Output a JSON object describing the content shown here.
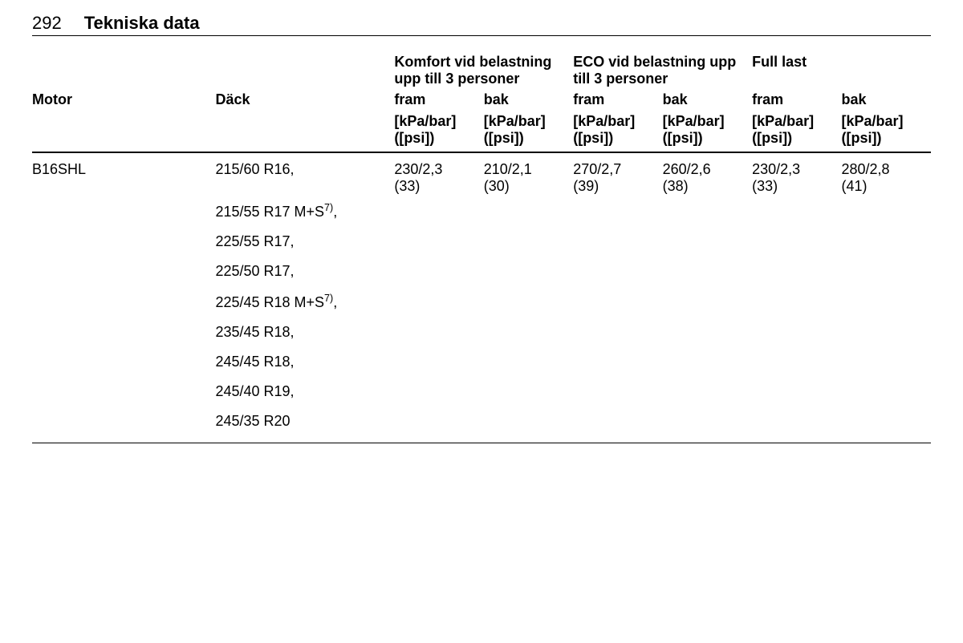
{
  "page": {
    "number": "292",
    "title": "Tekniska data"
  },
  "headers": {
    "motor": "Motor",
    "dack": "Däck",
    "group_komfort": "Komfort vid belastning upp till 3 personer",
    "group_eco": "ECO vid belastning upp till 3 personer",
    "group_full": "Full last",
    "fram": "fram",
    "bak": "bak",
    "unit_line1": "[kPa/bar]",
    "unit_line2": "([psi])"
  },
  "row": {
    "motor": "B16SHL",
    "tires": [
      "215/60 R16,",
      "215/55 R17 M+S",
      "225/55 R17,",
      "225/50 R17,",
      "225/45 R18 M+S",
      "235/45 R18,",
      "245/45 R18,",
      "245/40 R19,",
      "245/35 R20"
    ],
    "sup_mark": "7)",
    "sup_after": ",",
    "komfort_fram_l1": "230/2,3",
    "komfort_fram_l2": "(33)",
    "komfort_bak_l1": "210/2,1",
    "komfort_bak_l2": "(30)",
    "eco_fram_l1": "270/2,7",
    "eco_fram_l2": "(39)",
    "eco_bak_l1": "260/2,6",
    "eco_bak_l2": "(38)",
    "full_fram_l1": "230/2,3",
    "full_fram_l2": "(33)",
    "full_bak_l1": "280/2,8",
    "full_bak_l2": "(41)"
  }
}
